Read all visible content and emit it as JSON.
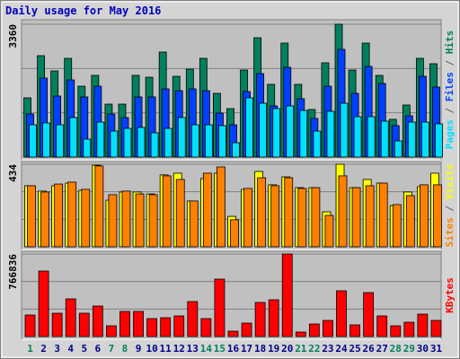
{
  "chart_data": [
    {
      "type": "bar",
      "title": "Daily usage for May 2016",
      "legend_separator": " / ",
      "ylim": [
        0,
        3360
      ],
      "yticks": [
        3360
      ],
      "grid": true,
      "series": [
        {
          "name": "Hits",
          "color": "#00805c",
          "values": [
            1498,
            2565,
            2179,
            2497,
            1793,
            2066,
            1339,
            1339,
            2066,
            2020,
            2656,
            2043,
            2225,
            2497,
            1612,
            1226,
            2202,
            3019,
            1839,
            2883,
            1839,
            1203,
            2384,
            3360,
            2202,
            2883,
            2066,
            954,
            1317,
            2497,
            2361
          ]
        },
        {
          "name": "Files",
          "color": "#0040ff",
          "values": [
            1090,
            1998,
            1544,
            1952,
            1521,
            1793,
            1090,
            999,
            1521,
            1521,
            1725,
            1680,
            1725,
            1680,
            1112,
            817,
            1657,
            2111,
            1294,
            2270,
            1476,
            976,
            1793,
            2724,
            1612,
            2293,
            1861,
            795,
            1044,
            2043,
            1771
          ]
        },
        {
          "name": "Pages",
          "color": "#00e0ff",
          "values": [
            817,
            863,
            817,
            999,
            454,
            885,
            658,
            726,
            749,
            613,
            726,
            999,
            817,
            817,
            795,
            363,
            1498,
            1362,
            1226,
            1294,
            1180,
            658,
            1158,
            1362,
            1022,
            1022,
            908,
            409,
            885,
            885,
            840
          ]
        }
      ]
    },
    {
      "type": "bar",
      "legend_separator": " / ",
      "ylim": [
        0,
        434
      ],
      "yticks": [
        434
      ],
      "grid": true,
      "series": [
        {
          "name": "Visits",
          "color": "#ffff00",
          "values": [
            321,
            293,
            321,
            335,
            297,
            429,
            245,
            288,
            288,
            278,
            378,
            387,
            241,
            359,
            387,
            160,
            302,
            396,
            326,
            368,
            311,
            311,
            184,
            434,
            311,
            354,
            335,
            217,
            288,
            316,
            387
          ]
        },
        {
          "name": "Sites",
          "color": "#ff8000",
          "values": [
            321,
            288,
            330,
            340,
            302,
            425,
            274,
            293,
            278,
            274,
            373,
            354,
            241,
            387,
            420,
            142,
            307,
            363,
            321,
            363,
            307,
            311,
            165,
            373,
            311,
            321,
            335,
            222,
            269,
            326,
            326
          ]
        }
      ]
    },
    {
      "type": "bar",
      "ylim": [
        0,
        766836
      ],
      "yticks": [
        766836
      ],
      "grid": true,
      "categories": [
        "1",
        "2",
        "3",
        "4",
        "5",
        "6",
        "7",
        "8",
        "9",
        "10",
        "11",
        "12",
        "13",
        "14",
        "15",
        "16",
        "17",
        "18",
        "19",
        "20",
        "21",
        "22",
        "23",
        "24",
        "25",
        "26",
        "27",
        "28",
        "29",
        "30",
        "31"
      ],
      "category_colors": [
        "#00805c",
        "#00008b",
        "#00008b",
        "#00008b",
        "#00008b",
        "#00008b",
        "#00805c",
        "#00805c",
        "#00008b",
        "#00008b",
        "#00008b",
        "#00008b",
        "#00008b",
        "#00805c",
        "#00805c",
        "#00008b",
        "#00008b",
        "#00008b",
        "#00008b",
        "#00008b",
        "#00805c",
        "#00805c",
        "#00008b",
        "#00008b",
        "#00008b",
        "#00008b",
        "#00008b",
        "#00805c",
        "#00805c",
        "#00008b",
        "#00008b"
      ],
      "series": [
        {
          "name": "KBytes",
          "color": "#ff0000",
          "values": [
            200040,
            608455,
            216710,
            350070,
            216710,
            283390,
            100020,
            233380,
            233380,
            166700,
            175035,
            191705,
            325065,
            166700,
            533440,
            50010,
            125025,
            316730,
            341735,
            766836,
            41675,
            116690,
            150030,
            425085,
            108355,
            408415,
            191705,
            100020,
            133360,
            208375,
            150030
          ]
        }
      ]
    }
  ]
}
